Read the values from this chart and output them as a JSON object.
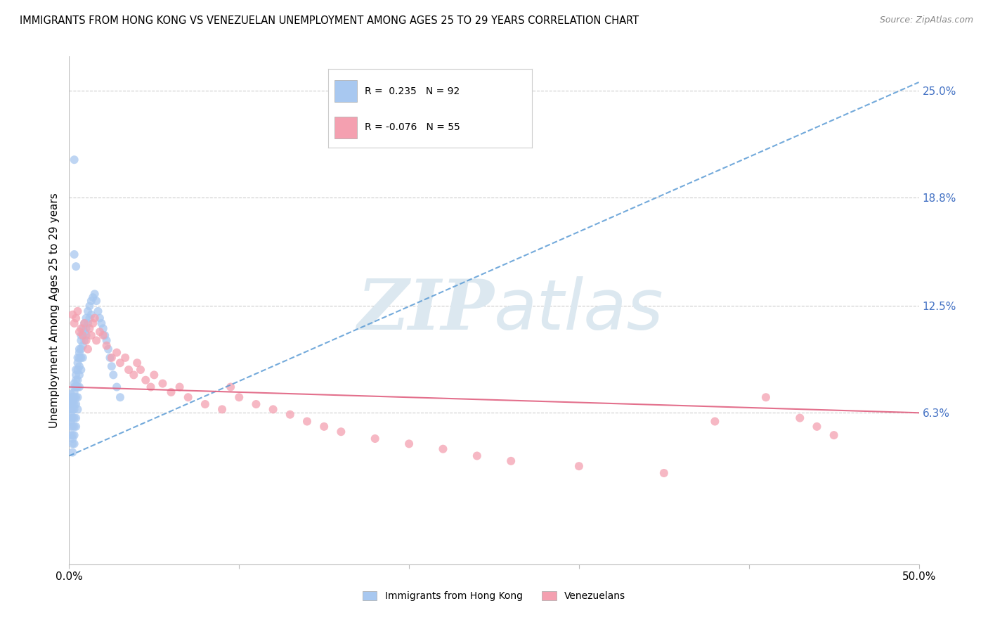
{
  "title": "IMMIGRANTS FROM HONG KONG VS VENEZUELAN UNEMPLOYMENT AMONG AGES 25 TO 29 YEARS CORRELATION CHART",
  "source": "Source: ZipAtlas.com",
  "ylabel": "Unemployment Among Ages 25 to 29 years",
  "xlim": [
    0.0,
    0.5
  ],
  "ylim": [
    -0.025,
    0.27
  ],
  "xticks": [
    0.0,
    0.1,
    0.2,
    0.3,
    0.4,
    0.5
  ],
  "xticklabels": [
    "0.0%",
    "",
    "",
    "",
    "",
    "50.0%"
  ],
  "ytick_right_labels": [
    "25.0%",
    "18.8%",
    "12.5%",
    "6.3%"
  ],
  "ytick_right_values": [
    0.25,
    0.188,
    0.125,
    0.063
  ],
  "hk_R": 0.235,
  "hk_N": 92,
  "ven_R": -0.076,
  "ven_N": 55,
  "hk_color": "#a8c8f0",
  "ven_color": "#f4a0b0",
  "hk_line_color": "#5b9bd5",
  "ven_line_color": "#e06080",
  "watermark_color": "#dce8f0",
  "hk_scatter_x": [
    0.001,
    0.001,
    0.001,
    0.001,
    0.001,
    0.001,
    0.001,
    0.001,
    0.001,
    0.001,
    0.002,
    0.002,
    0.002,
    0.002,
    0.002,
    0.002,
    0.002,
    0.002,
    0.002,
    0.002,
    0.003,
    0.003,
    0.003,
    0.003,
    0.003,
    0.003,
    0.003,
    0.003,
    0.003,
    0.003,
    0.004,
    0.004,
    0.004,
    0.004,
    0.004,
    0.004,
    0.004,
    0.004,
    0.005,
    0.005,
    0.005,
    0.005,
    0.005,
    0.005,
    0.005,
    0.006,
    0.006,
    0.006,
    0.006,
    0.006,
    0.006,
    0.007,
    0.007,
    0.007,
    0.007,
    0.007,
    0.008,
    0.008,
    0.008,
    0.008,
    0.009,
    0.009,
    0.009,
    0.01,
    0.01,
    0.01,
    0.011,
    0.011,
    0.012,
    0.012,
    0.013,
    0.013,
    0.014,
    0.015,
    0.016,
    0.017,
    0.018,
    0.019,
    0.02,
    0.021,
    0.022,
    0.023,
    0.024,
    0.025,
    0.026,
    0.028,
    0.03,
    0.003,
    0.003,
    0.004
  ],
  "hk_scatter_y": [
    0.065,
    0.068,
    0.07,
    0.072,
    0.074,
    0.058,
    0.06,
    0.062,
    0.055,
    0.05,
    0.065,
    0.07,
    0.072,
    0.068,
    0.06,
    0.055,
    0.05,
    0.048,
    0.045,
    0.04,
    0.075,
    0.078,
    0.08,
    0.072,
    0.068,
    0.065,
    0.06,
    0.055,
    0.05,
    0.045,
    0.085,
    0.088,
    0.082,
    0.078,
    0.072,
    0.068,
    0.06,
    0.055,
    0.095,
    0.092,
    0.088,
    0.082,
    0.078,
    0.072,
    0.065,
    0.1,
    0.098,
    0.095,
    0.09,
    0.085,
    0.078,
    0.108,
    0.105,
    0.1,
    0.095,
    0.088,
    0.112,
    0.108,
    0.102,
    0.095,
    0.115,
    0.11,
    0.105,
    0.118,
    0.112,
    0.108,
    0.122,
    0.115,
    0.125,
    0.118,
    0.128,
    0.12,
    0.13,
    0.132,
    0.128,
    0.122,
    0.118,
    0.115,
    0.112,
    0.108,
    0.105,
    0.1,
    0.095,
    0.09,
    0.085,
    0.078,
    0.072,
    0.21,
    0.155,
    0.148
  ],
  "ven_scatter_x": [
    0.002,
    0.003,
    0.004,
    0.005,
    0.006,
    0.007,
    0.008,
    0.009,
    0.01,
    0.011,
    0.012,
    0.013,
    0.014,
    0.015,
    0.016,
    0.018,
    0.02,
    0.022,
    0.025,
    0.028,
    0.03,
    0.033,
    0.035,
    0.038,
    0.04,
    0.042,
    0.045,
    0.048,
    0.05,
    0.055,
    0.06,
    0.065,
    0.07,
    0.08,
    0.09,
    0.095,
    0.1,
    0.11,
    0.12,
    0.13,
    0.14,
    0.15,
    0.16,
    0.18,
    0.2,
    0.22,
    0.24,
    0.26,
    0.3,
    0.35,
    0.38,
    0.41,
    0.43,
    0.44,
    0.45
  ],
  "ven_scatter_y": [
    0.12,
    0.115,
    0.118,
    0.122,
    0.11,
    0.112,
    0.108,
    0.115,
    0.105,
    0.1,
    0.112,
    0.108,
    0.115,
    0.118,
    0.105,
    0.11,
    0.108,
    0.102,
    0.095,
    0.098,
    0.092,
    0.095,
    0.088,
    0.085,
    0.092,
    0.088,
    0.082,
    0.078,
    0.085,
    0.08,
    0.075,
    0.078,
    0.072,
    0.068,
    0.065,
    0.078,
    0.072,
    0.068,
    0.065,
    0.062,
    0.058,
    0.055,
    0.052,
    0.048,
    0.045,
    0.042,
    0.038,
    0.035,
    0.032,
    0.028,
    0.058,
    0.072,
    0.06,
    0.055,
    0.05
  ],
  "hk_line_x0": 0.0,
  "hk_line_y0": 0.038,
  "hk_line_x1": 0.5,
  "hk_line_y1": 0.255,
  "ven_line_x0": 0.0,
  "ven_line_y0": 0.078,
  "ven_line_x1": 0.5,
  "ven_line_y1": 0.063
}
